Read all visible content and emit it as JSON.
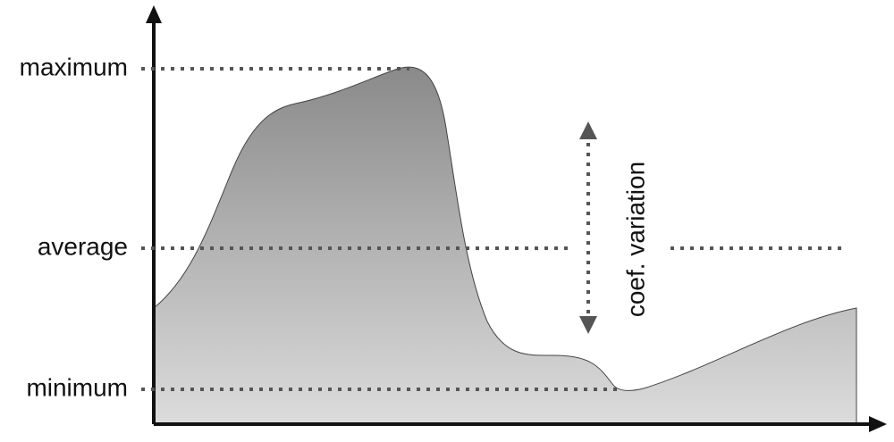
{
  "labels": {
    "maximum": "maximum",
    "average": "average",
    "minimum": "minimum",
    "variation": "coef. variation"
  }
}
